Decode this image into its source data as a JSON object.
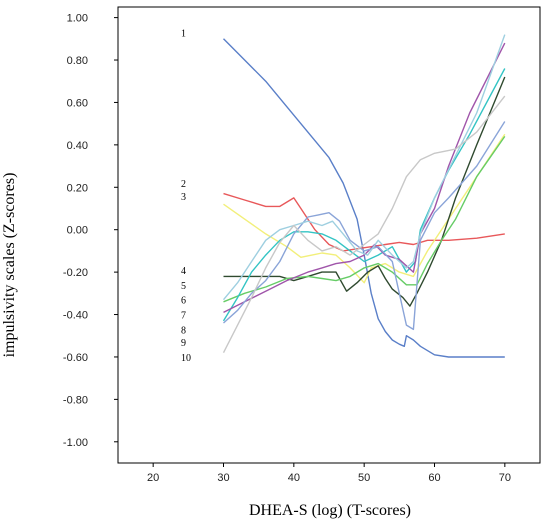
{
  "chart_data": {
    "type": "line",
    "title": "",
    "xlabel": "DHEA-S (log) (T-scores)",
    "ylabel": "impulsivity scales (Z-scores)",
    "xlim": [
      15,
      75
    ],
    "ylim": [
      -1.1,
      1.05
    ],
    "xticks": [
      20,
      30,
      40,
      50,
      60,
      70
    ],
    "xtick_labels": [
      "20",
      "30",
      "40",
      "50",
      "60",
      "70"
    ],
    "yticks": [
      1.0,
      0.8,
      0.6,
      0.4,
      0.2,
      0.0,
      -0.2,
      -0.4,
      -0.6,
      -0.8,
      -1.0
    ],
    "ytick_labels": [
      "1.00",
      "0.80",
      "0.60",
      "0.40",
      "0.20",
      "0.00",
      "-0.20",
      "-0.40",
      "-0.60",
      "-0.80",
      "-1.00"
    ],
    "grid": false,
    "legend": "none",
    "label_column": [
      {
        "text": "1",
        "y": 0.93
      },
      {
        "text": "2",
        "y": 0.22
      },
      {
        "text": "3",
        "y": 0.16
      },
      {
        "text": "4",
        "y": -0.19
      },
      {
        "text": "5",
        "y": -0.26
      },
      {
        "text": "6",
        "y": -0.33
      },
      {
        "text": "7",
        "y": -0.4
      },
      {
        "text": "8",
        "y": -0.47
      },
      {
        "text": "9",
        "y": -0.53
      },
      {
        "text": "10",
        "y": -0.6
      }
    ],
    "series": [
      {
        "color": "#5a7fc8",
        "points": [
          [
            30,
            0.9
          ],
          [
            33,
            0.8
          ],
          [
            36,
            0.7
          ],
          [
            39,
            0.58
          ],
          [
            41,
            0.5
          ],
          [
            43,
            0.42
          ],
          [
            45,
            0.34
          ],
          [
            47,
            0.22
          ],
          [
            49,
            0.05
          ],
          [
            50,
            -0.12
          ],
          [
            51,
            -0.3
          ],
          [
            52,
            -0.42
          ],
          [
            53,
            -0.48
          ],
          [
            54,
            -0.52
          ],
          [
            55,
            -0.54
          ],
          [
            55.7,
            -0.55
          ],
          [
            56,
            -0.5
          ],
          [
            57,
            -0.52
          ],
          [
            58,
            -0.55
          ],
          [
            60,
            -0.59
          ],
          [
            62,
            -0.6
          ],
          [
            66,
            -0.6
          ],
          [
            70,
            -0.6
          ]
        ]
      },
      {
        "color": "#e8585a",
        "points": [
          [
            30,
            0.17
          ],
          [
            33,
            0.14
          ],
          [
            36,
            0.11
          ],
          [
            38,
            0.11
          ],
          [
            40,
            0.15
          ],
          [
            41,
            0.1
          ],
          [
            43,
            0.0
          ],
          [
            45,
            -0.07
          ],
          [
            47,
            -0.1
          ],
          [
            49,
            -0.09
          ],
          [
            51,
            -0.08
          ],
          [
            53,
            -0.07
          ],
          [
            55,
            -0.06
          ],
          [
            57,
            -0.07
          ],
          [
            59,
            -0.05
          ],
          [
            62,
            -0.05
          ],
          [
            66,
            -0.04
          ],
          [
            70,
            -0.02
          ]
        ]
      },
      {
        "color": "#f2ef7a",
        "points": [
          [
            30,
            0.12
          ],
          [
            33,
            0.05
          ],
          [
            36,
            -0.02
          ],
          [
            39,
            -0.08
          ],
          [
            41,
            -0.13
          ],
          [
            44,
            -0.11
          ],
          [
            46,
            -0.12
          ],
          [
            48,
            -0.18
          ],
          [
            50,
            -0.25
          ],
          [
            51,
            -0.18
          ],
          [
            53,
            -0.16
          ],
          [
            55,
            -0.2
          ],
          [
            57,
            -0.22
          ],
          [
            59,
            -0.1
          ],
          [
            61,
            -0.0
          ],
          [
            63,
            0.1
          ],
          [
            66,
            0.25
          ],
          [
            70,
            0.45
          ]
        ]
      },
      {
        "color": "#2f4a2f",
        "points": [
          [
            30,
            -0.22
          ],
          [
            33,
            -0.22
          ],
          [
            35,
            -0.22
          ],
          [
            38,
            -0.22
          ],
          [
            40,
            -0.24
          ],
          [
            42,
            -0.22
          ],
          [
            44,
            -0.2
          ],
          [
            46,
            -0.2
          ],
          [
            47.5,
            -0.29
          ],
          [
            49,
            -0.25
          ],
          [
            50.5,
            -0.2
          ],
          [
            52,
            -0.17
          ],
          [
            53,
            -0.23
          ],
          [
            54,
            -0.28
          ],
          [
            55.5,
            -0.32
          ],
          [
            56.5,
            -0.36
          ],
          [
            57.5,
            -0.3
          ],
          [
            59,
            -0.2
          ],
          [
            61,
            -0.05
          ],
          [
            63,
            0.15
          ],
          [
            66,
            0.4
          ],
          [
            70,
            0.72
          ]
        ]
      },
      {
        "color": "#66cc66",
        "points": [
          [
            30,
            -0.34
          ],
          [
            33,
            -0.3
          ],
          [
            36,
            -0.27
          ],
          [
            39,
            -0.23
          ],
          [
            42,
            -0.22
          ],
          [
            44,
            -0.23
          ],
          [
            46,
            -0.24
          ],
          [
            48,
            -0.22
          ],
          [
            50,
            -0.18
          ],
          [
            52,
            -0.16
          ],
          [
            54,
            -0.2
          ],
          [
            56,
            -0.26
          ],
          [
            57.5,
            -0.26
          ],
          [
            59,
            -0.16
          ],
          [
            61,
            -0.05
          ],
          [
            63,
            0.05
          ],
          [
            66,
            0.25
          ],
          [
            70,
            0.44
          ]
        ]
      },
      {
        "color": "#33c4c4",
        "points": [
          [
            30,
            -0.43
          ],
          [
            32,
            -0.32
          ],
          [
            34,
            -0.2
          ],
          [
            36,
            -0.12
          ],
          [
            38,
            -0.05
          ],
          [
            40,
            -0.01
          ],
          [
            42,
            -0.01
          ],
          [
            44,
            -0.02
          ],
          [
            46,
            -0.05
          ],
          [
            48,
            -0.1
          ],
          [
            50,
            -0.15
          ],
          [
            52,
            -0.12
          ],
          [
            54,
            -0.08
          ],
          [
            56,
            -0.2
          ],
          [
            57.3,
            -0.15
          ],
          [
            58,
            0.0
          ],
          [
            60,
            0.15
          ],
          [
            62,
            0.28
          ],
          [
            65,
            0.45
          ],
          [
            70,
            0.76
          ]
        ]
      },
      {
        "color": "#a055aa",
        "points": [
          [
            30,
            -0.39
          ],
          [
            33,
            -0.34
          ],
          [
            36,
            -0.29
          ],
          [
            39,
            -0.24
          ],
          [
            42,
            -0.2
          ],
          [
            44,
            -0.18
          ],
          [
            46,
            -0.16
          ],
          [
            48,
            -0.15
          ],
          [
            50,
            -0.12
          ],
          [
            51.5,
            -0.07
          ],
          [
            53,
            -0.12
          ],
          [
            55,
            -0.14
          ],
          [
            57,
            -0.2
          ],
          [
            58,
            -0.02
          ],
          [
            60,
            0.1
          ],
          [
            62,
            0.3
          ],
          [
            65,
            0.55
          ],
          [
            70,
            0.88
          ]
        ]
      },
      {
        "color": "#8aa4d8",
        "points": [
          [
            30,
            -0.44
          ],
          [
            32,
            -0.38
          ],
          [
            34,
            -0.3
          ],
          [
            36,
            -0.24
          ],
          [
            38,
            -0.15
          ],
          [
            40,
            -0.02
          ],
          [
            42,
            0.06
          ],
          [
            43.5,
            0.07
          ],
          [
            45,
            0.08
          ],
          [
            46.5,
            0.04
          ],
          [
            48,
            -0.05
          ],
          [
            50,
            -0.1
          ],
          [
            52,
            -0.08
          ],
          [
            54,
            -0.15
          ],
          [
            55,
            -0.3
          ],
          [
            56,
            -0.45
          ],
          [
            57,
            -0.47
          ],
          [
            58,
            -0.05
          ],
          [
            60,
            0.08
          ],
          [
            62,
            0.15
          ],
          [
            66,
            0.3
          ],
          [
            70,
            0.51
          ]
        ]
      },
      {
        "color": "#9ecfe0",
        "points": [
          [
            30,
            -0.33
          ],
          [
            32,
            -0.25
          ],
          [
            34,
            -0.15
          ],
          [
            36,
            -0.05
          ],
          [
            38,
            0.0
          ],
          [
            40,
            0.02
          ],
          [
            42,
            0.04
          ],
          [
            44,
            0.02
          ],
          [
            45.5,
            0.04
          ],
          [
            47,
            -0.02
          ],
          [
            49,
            -0.1
          ],
          [
            50.5,
            -0.12
          ],
          [
            52,
            -0.05
          ],
          [
            54,
            -0.12
          ],
          [
            56,
            -0.18
          ],
          [
            57,
            -0.15
          ],
          [
            58,
            -0.02
          ],
          [
            60,
            0.15
          ],
          [
            63,
            0.35
          ],
          [
            66,
            0.55
          ],
          [
            70,
            0.92
          ]
        ]
      },
      {
        "color": "#c8c8c8",
        "points": [
          [
            30,
            -0.58
          ],
          [
            32,
            -0.45
          ],
          [
            34,
            -0.32
          ],
          [
            36,
            -0.18
          ],
          [
            38,
            -0.06
          ],
          [
            40,
            0.02
          ],
          [
            42,
            -0.05
          ],
          [
            44,
            -0.1
          ],
          [
            46,
            -0.08
          ],
          [
            48,
            -0.12
          ],
          [
            50,
            -0.07
          ],
          [
            52,
            -0.02
          ],
          [
            54,
            0.1
          ],
          [
            56,
            0.25
          ],
          [
            58,
            0.33
          ],
          [
            60,
            0.36
          ],
          [
            63,
            0.38
          ],
          [
            66,
            0.46
          ],
          [
            70,
            0.63
          ]
        ]
      }
    ]
  }
}
